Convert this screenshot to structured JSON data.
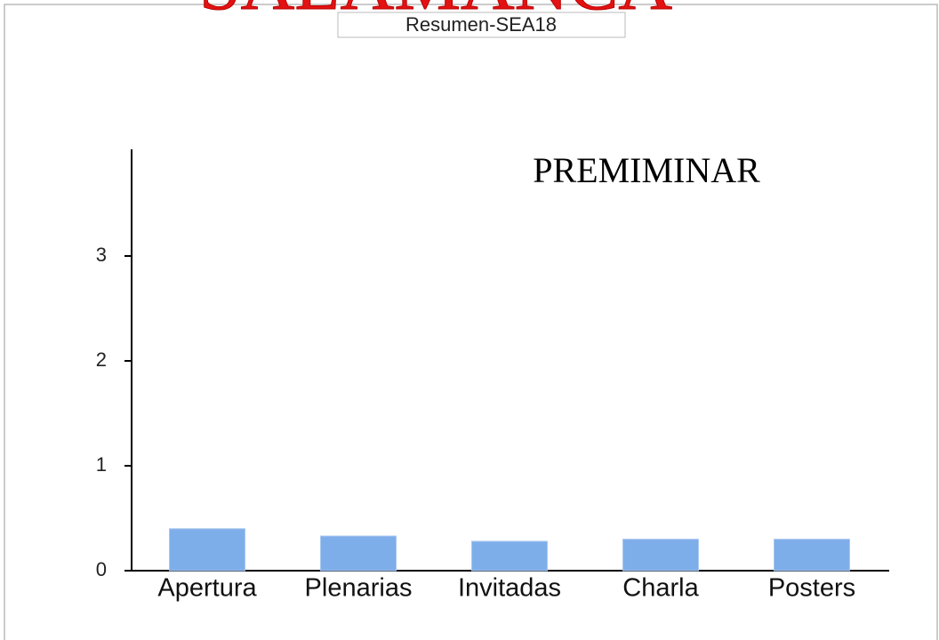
{
  "header": {
    "banner": "SALAMANCA",
    "tab": "Resumen-SEA18"
  },
  "chart_data": {
    "type": "bar",
    "annotation": "PREMIMINAR",
    "categories": [
      "Apertura",
      "Plenarias",
      "Invitadas",
      "Charla",
      "Posters"
    ],
    "values": [
      0.4,
      0.33,
      0.28,
      0.3,
      0.3
    ],
    "color": "#7eaeea",
    "ylim": [
      0,
      4
    ],
    "yticks": [
      0,
      1,
      2,
      3
    ],
    "grid": false
  }
}
